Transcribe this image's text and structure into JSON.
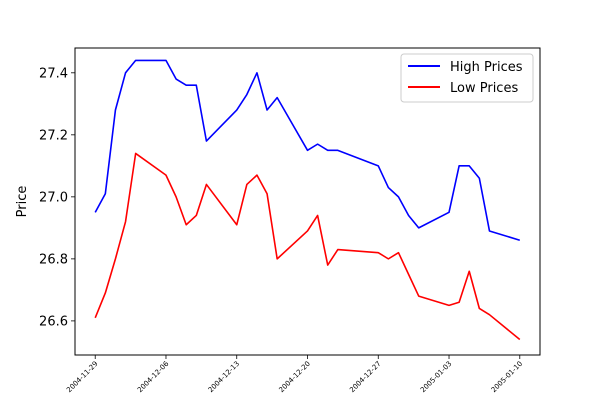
{
  "chart_data": {
    "type": "line",
    "title": "",
    "xlabel": "",
    "ylabel": "Price",
    "x": [
      "2004-11-29",
      "2004-11-30",
      "2004-12-01",
      "2004-12-02",
      "2004-12-03",
      "2004-12-06",
      "2004-12-07",
      "2004-12-08",
      "2004-12-09",
      "2004-12-10",
      "2004-12-13",
      "2004-12-14",
      "2004-12-15",
      "2004-12-16",
      "2004-12-17",
      "2004-12-20",
      "2004-12-21",
      "2004-12-22",
      "2004-12-23",
      "2004-12-27",
      "2004-12-28",
      "2004-12-29",
      "2004-12-30",
      "2004-12-31",
      "2005-01-03",
      "2005-01-04",
      "2005-01-05",
      "2005-01-06",
      "2005-01-07",
      "2005-01-10"
    ],
    "xticks": [
      "2004-11-29",
      "2004-12-06",
      "2004-12-13",
      "2004-12-20",
      "2004-12-27",
      "2005-01-03",
      "2005-01-10"
    ],
    "yticks": [
      26.6,
      26.8,
      27.0,
      27.2,
      27.4
    ],
    "ytick_labels": [
      "26.6",
      "26.8",
      "27.0",
      "27.2",
      "27.4"
    ],
    "ylim": [
      26.49,
      27.48
    ],
    "xlim": [
      "2004-11-27",
      "2005-01-12"
    ],
    "grid": false,
    "legend_position": "top-right",
    "series": [
      {
        "name": "High Prices",
        "color": "#0000ff",
        "values": [
          26.95,
          27.01,
          27.28,
          27.4,
          27.44,
          27.44,
          27.38,
          27.36,
          27.36,
          27.18,
          27.28,
          27.33,
          27.4,
          27.28,
          27.32,
          27.15,
          27.17,
          27.15,
          27.15,
          27.1,
          27.03,
          27.0,
          26.94,
          26.9,
          26.95,
          27.1,
          27.1,
          27.06,
          26.89,
          26.86
        ]
      },
      {
        "name": "Low Prices",
        "color": "#ff0000",
        "values": [
          26.61,
          26.69,
          26.8,
          26.92,
          27.14,
          27.07,
          27.0,
          26.91,
          26.94,
          27.04,
          26.91,
          27.04,
          27.07,
          27.01,
          26.8,
          26.89,
          26.94,
          26.78,
          26.83,
          26.82,
          26.8,
          26.82,
          26.75,
          26.68,
          26.65,
          26.66,
          26.76,
          26.64,
          26.62,
          26.54
        ]
      }
    ]
  }
}
